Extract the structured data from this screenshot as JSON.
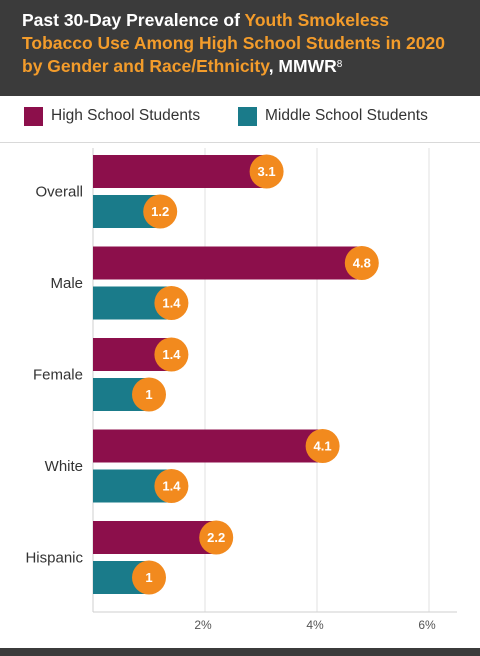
{
  "header": {
    "title_part1": "Past 30-Day Prevalence of ",
    "title_highlight": "Youth Smokeless Tobacco Use Among High School Students in 2020 by Gender and Race/Ethnicity",
    "title_part2": ", MMWR",
    "title_sup": "8"
  },
  "colors": {
    "header_bg": "#3b3b3b",
    "highlight": "#f39c2b",
    "high_school": "#8c0f4b",
    "middle_school": "#1a7b8a",
    "label_circle": "#f28a1e"
  },
  "chart_data": {
    "type": "bar",
    "orientation": "horizontal",
    "categories": [
      "Overall",
      "Male",
      "Female",
      "White",
      "Hispanic"
    ],
    "series": [
      {
        "name": "High School Students",
        "values": [
          3.1,
          4.8,
          1.4,
          4.1,
          2.2
        ]
      },
      {
        "name": "Middle School Students",
        "values": [
          1.2,
          1.4,
          1,
          1.4,
          1
        ]
      }
    ],
    "x_ticks": [
      "2%",
      "4%",
      "6%"
    ],
    "x_tick_values": [
      2,
      4,
      6
    ],
    "xlim": [
      0,
      6.5
    ],
    "grid": true,
    "legend_position": "top",
    "data_labels": true
  }
}
